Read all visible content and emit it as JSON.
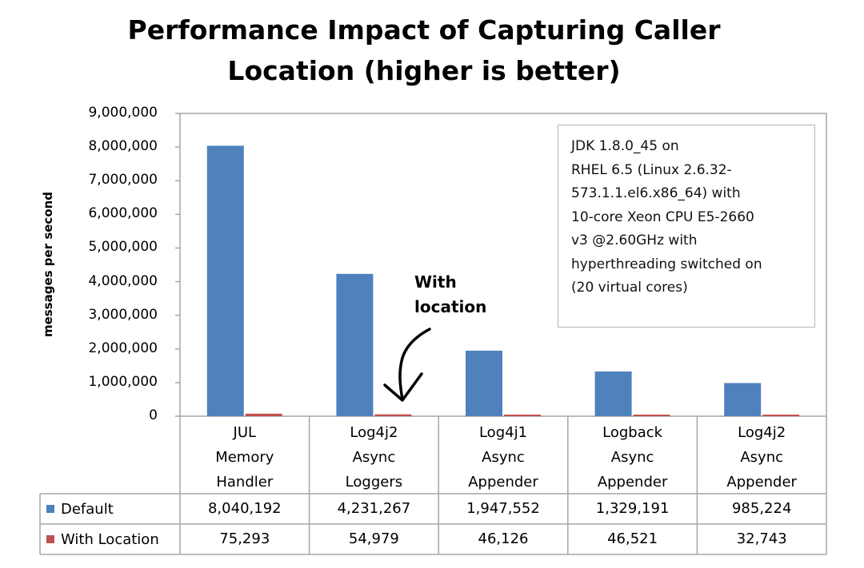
{
  "chart_data": {
    "type": "bar",
    "title_lines": [
      "Performance Impact of Capturing Caller",
      "Location (higher is better)"
    ],
    "ylabel": "messages per second",
    "xlabel": "",
    "ylim": [
      0,
      9000000
    ],
    "yticks": [
      "0",
      "1,000,000",
      "2,000,000",
      "3,000,000",
      "4,000,000",
      "5,000,000",
      "6,000,000",
      "7,000,000",
      "8,000,000",
      "9,000,000"
    ],
    "ytick_values": [
      0,
      1000000,
      2000000,
      3000000,
      4000000,
      5000000,
      6000000,
      7000000,
      8000000,
      9000000
    ],
    "grid": false,
    "categories": [
      [
        "JUL",
        "Memory",
        "Handler"
      ],
      [
        "Log4j2",
        "Async",
        "Loggers"
      ],
      [
        "Log4j1",
        "Async",
        "Appender"
      ],
      [
        "Logback",
        "Async",
        "Appender"
      ],
      [
        "Log4j2",
        "Async",
        "Appender"
      ]
    ],
    "series": [
      {
        "name": "Default",
        "color": "#4f81bd",
        "values": [
          8040192,
          4231267,
          1947552,
          1329191,
          985224
        ],
        "labels": [
          "8,040,192",
          "4,231,267",
          "1,947,552",
          "1,329,191",
          "985,224"
        ]
      },
      {
        "name": "With Location",
        "color": "#c0504d",
        "values": [
          75293,
          54979,
          46126,
          46521,
          32743
        ],
        "labels": [
          "75,293",
          "54,979",
          "46,126",
          "46,521",
          "32,743"
        ]
      }
    ],
    "annotation": [
      "With",
      "location"
    ],
    "note_lines": [
      "JDK 1.8.0_45 on",
      "RHEL 6.5 (Linux 2.6.32-",
      "573.1.1.el6.x86_64) with",
      "10-core Xeon CPU E5-2660",
      "v3 @2.60GHz with",
      "hyperthreading switched on",
      "(20 virtual cores)"
    ],
    "legend_placement": "bottom data table"
  },
  "colors": {
    "default": "#4f81bd",
    "with_location": "#c0504d",
    "frame": "#a6a6a6"
  }
}
